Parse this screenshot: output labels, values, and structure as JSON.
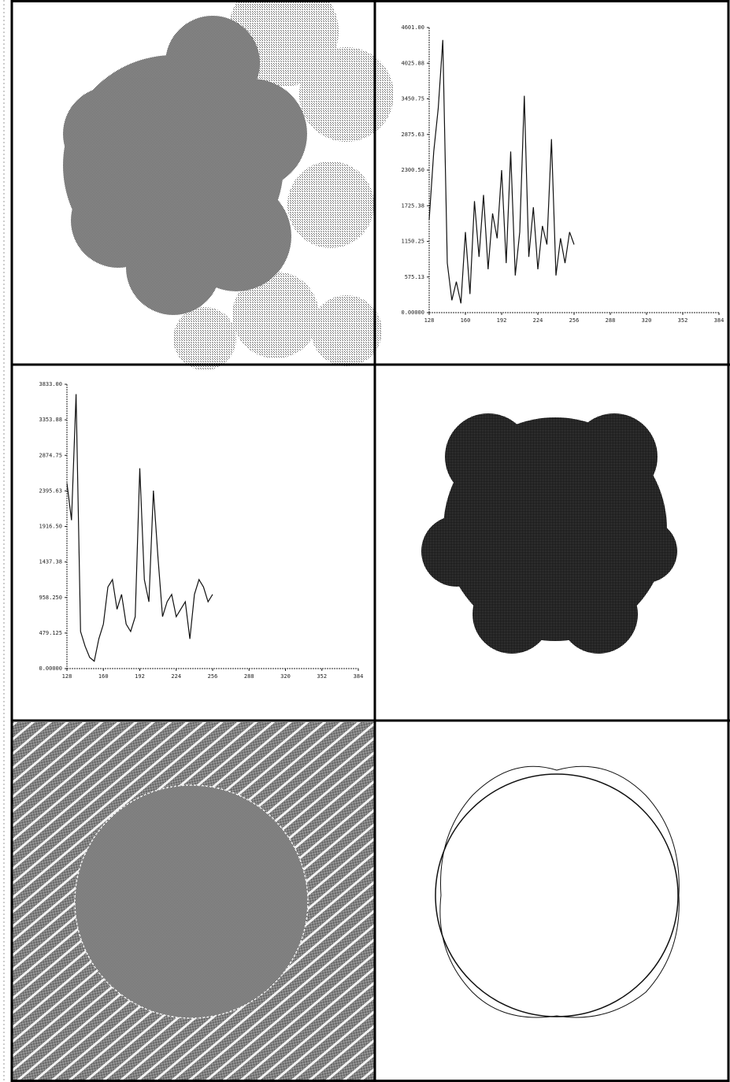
{
  "chart_data": [
    {
      "type": "line",
      "color": "#111111",
      "x": [
        128,
        132,
        136,
        140,
        144,
        148,
        152,
        156,
        160,
        164,
        168,
        172,
        176,
        180,
        184,
        188,
        192,
        196,
        200,
        204,
        208,
        212,
        216,
        220,
        224,
        228,
        232,
        236,
        240,
        244,
        248,
        252,
        256
      ],
      "values": [
        1500,
        2600,
        3300,
        4400,
        800,
        200,
        500,
        150,
        1300,
        300,
        1800,
        900,
        1900,
        700,
        1600,
        1200,
        2300,
        800,
        2600,
        600,
        1300,
        3500,
        900,
        1700,
        700,
        1400,
        1100,
        2800,
        600,
        1200,
        800,
        1300,
        1100
      ],
      "xlim": [
        128,
        384
      ],
      "xticks": [
        128,
        160,
        192,
        224,
        256,
        288,
        320,
        352,
        384
      ],
      "ylim": [
        0,
        4601
      ],
      "yticks": [
        {
          "value": 0,
          "label": "0.00000"
        },
        {
          "value": 575.125,
          "label": "575.13"
        },
        {
          "value": 1150.25,
          "label": "1150.25"
        },
        {
          "value": 1725.375,
          "label": "1725.38"
        },
        {
          "value": 2300.5,
          "label": "2300.50"
        },
        {
          "value": 2875.625,
          "label": "2875.63"
        },
        {
          "value": 3450.75,
          "label": "3450.75"
        },
        {
          "value": 4025.875,
          "label": "4025.88"
        },
        {
          "value": 4601,
          "label": "4601.00"
        }
      ]
    },
    {
      "type": "line",
      "color": "#111111",
      "x": [
        128,
        132,
        136,
        140,
        144,
        148,
        152,
        156,
        160,
        164,
        168,
        172,
        176,
        180,
        184,
        188,
        192,
        196,
        200,
        204,
        208,
        212,
        216,
        220,
        224,
        228,
        232,
        236,
        240,
        244,
        248,
        252,
        256
      ],
      "values": [
        2500,
        2000,
        3700,
        500,
        300,
        150,
        100,
        400,
        600,
        1100,
        1200,
        800,
        1000,
        600,
        500,
        700,
        2700,
        1200,
        900,
        2400,
        1500,
        700,
        900,
        1000,
        700,
        800,
        900,
        400,
        1000,
        1200,
        1100,
        900,
        1000
      ],
      "xlim": [
        128,
        384
      ],
      "xticks": [
        128,
        160,
        192,
        224,
        256,
        288,
        320,
        352,
        384
      ],
      "ylim": [
        0,
        3833
      ],
      "yticks": [
        {
          "value": 0,
          "label": "0.00000"
        },
        {
          "value": 479.125,
          "label": "479.125"
        },
        {
          "value": 958.25,
          "label": "958.250"
        },
        {
          "value": 1437.375,
          "label": "1437.38"
        },
        {
          "value": 1916.5,
          "label": "1916.50"
        },
        {
          "value": 2395.625,
          "label": "2395.63"
        },
        {
          "value": 2874.75,
          "label": "2874.75"
        },
        {
          "value": 3353.875,
          "label": "3353.88"
        },
        {
          "value": 3833,
          "label": "3833.00"
        }
      ]
    }
  ]
}
